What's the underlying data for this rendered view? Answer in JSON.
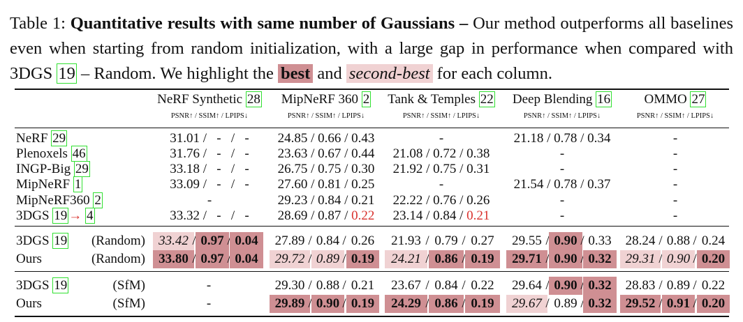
{
  "caption": {
    "prefix": "Table 1: ",
    "title": "Quantitative results with same number of Gaussians –",
    "text1": " Our method outperforms all baselines even when starting from random initialization, with a large gap in performance when compared with 3DGS ",
    "ref": "19",
    "text2": " – Random. We highlight the ",
    "best": "best",
    "and": " and ",
    "second": "second-best",
    "text3": " for each column."
  },
  "table": {
    "columns": [
      {
        "name": "NeRF Synthetic ",
        "ref": "28"
      },
      {
        "name": "MipNeRF 360 ",
        "ref": "2"
      },
      {
        "name": "Tank & Temples ",
        "ref": "22"
      },
      {
        "name": "Deep Blending ",
        "ref": "16"
      },
      {
        "name": "OMMO ",
        "ref": "27"
      }
    ],
    "metric_header": "PSNR↑ / SSIM↑ / LPIPS↓",
    "baselines": [
      {
        "method": "NeRF ",
        "ref": "29",
        "values": [
          "31.01 /   -   /   -",
          "24.85 / 0.66 / 0.43",
          "-",
          "21.18 / 0.78 / 0.34",
          "-"
        ]
      },
      {
        "method": "Plenoxels ",
        "ref": "46",
        "values": [
          "31.76 /   -   /   -",
          "23.63 / 0.67 / 0.44",
          "21.08 / 0.72 / 0.38",
          "-",
          "-"
        ]
      },
      {
        "method": "INGP-Big ",
        "ref": "29",
        "values": [
          "33.18 /   -   /   -",
          "26.75 / 0.75 / 0.30",
          "21.92 / 0.75 / 0.31",
          "-",
          "-"
        ]
      },
      {
        "method": "MipNeRF ",
        "ref": "1",
        "values": [
          "33.09 /   -   /   -",
          "27.60 / 0.81 / 0.25",
          "-",
          "21.54 / 0.78 / 0.37",
          "-"
        ]
      },
      {
        "method": "MipNeRF360 ",
        "ref": "2",
        "values": [
          "-",
          "29.23 / 0.84 / 0.21",
          "22.22 / 0.76 / 0.26",
          "-",
          "-"
        ]
      },
      {
        "method": "3DGS ",
        "ref": "19",
        "arrow": "→",
        "ref2": "4",
        "values": [
          "33.32 /   -   /   -",
          "28.69 / 0.87 / 0.22",
          "23.14 / 0.84 / 0.21",
          "-",
          "-"
        ]
      }
    ],
    "random_group": [
      {
        "method": "3DGS ",
        "ref": "19",
        "init": "(Random)",
        "values": [
          [
            "33.42",
            "0.97",
            "0.04"
          ],
          [
            "27.89",
            "0.84",
            "0.26"
          ],
          [
            "21.93",
            "0.79",
            "0.27"
          ],
          [
            "29.55",
            "0.90",
            "0.33"
          ],
          [
            "28.24",
            "0.88",
            "0.24"
          ]
        ]
      },
      {
        "method": "Ours",
        "init": "(Random)",
        "values": [
          [
            "33.80",
            "0.97",
            "0.04"
          ],
          [
            "29.72",
            "0.89",
            "0.19"
          ],
          [
            "24.21",
            "0.86",
            "0.19"
          ],
          [
            "29.71",
            "0.90",
            "0.32"
          ],
          [
            "29.31",
            "0.90",
            "0.20"
          ]
        ]
      }
    ],
    "sfm_group": [
      {
        "method": "3DGS ",
        "ref": "19",
        "init": "(SfM)",
        "values": [
          [
            "-"
          ],
          [
            "29.30",
            "0.88",
            "0.21"
          ],
          [
            "23.67",
            "0.84",
            "0.22"
          ],
          [
            "29.64",
            "0.90",
            "0.32"
          ],
          [
            "28.83",
            "0.89",
            "0.22"
          ]
        ]
      },
      {
        "method": "Ours",
        "init": "(SfM)",
        "values": [
          [
            "-"
          ],
          [
            "29.89",
            "0.90",
            "0.19"
          ],
          [
            "24.29",
            "0.86",
            "0.19"
          ],
          [
            "29.67",
            "0.89",
            "0.32"
          ],
          [
            "29.52",
            "0.91",
            "0.20"
          ]
        ]
      }
    ],
    "colors": {
      "best": "#cf8f93",
      "second": "#f0d2d3",
      "ref_box": "#31e031",
      "red_value": "#d9302c"
    }
  }
}
